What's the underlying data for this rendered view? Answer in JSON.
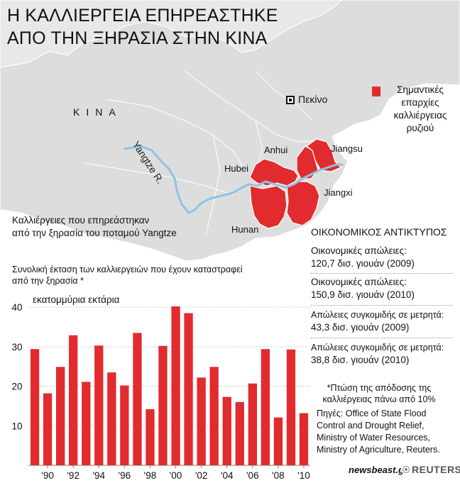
{
  "title": {
    "line1": "Η ΚΑΛΛΙΕΡΓΕΙΑ ΕΠΗΡΕΑΣΤΗΚΕ",
    "line2": "ΑΠΟ ΤΗΝ ΞΗΡΑΣΙΑ ΣΤΗΝ ΚΙΝΑ"
  },
  "map": {
    "country": "ΚΙΝΑ",
    "capital": "Πεκίνο",
    "river": "Yangtze R.",
    "provinces": [
      "Anhui",
      "Jiangsu",
      "Hubei",
      "Jiangxi",
      "Hunan"
    ],
    "legend": "Σημαντικές επαρχίες καλλιέργειας ρυζιού",
    "colors": {
      "land": "#ddddde",
      "highlight": "#e12b2e",
      "river": "#8fc3e3",
      "border": "#ffffff"
    }
  },
  "subtitle": {
    "line1": "Καλλιέργειες που επηρεάστηκαν",
    "line2": "από την ξηρασία του ποταμού Yangtze"
  },
  "chart_header": {
    "line1": "Συνολική έκταση των καλλιεργειών που έχουν καταστραφεί",
    "line2": "από την ξηρασία *"
  },
  "impact": {
    "title": "ΟΙΚΟΝΟΜΙΚΟΣ ΑΝΤΙΚΤΥΠΟΣ",
    "items": [
      {
        "label": "Οικονομικές απώλειες:",
        "value": "120,7 δισ. γιουάν (2009)"
      },
      {
        "label": "Οικονομικές απώλειες:",
        "value": "150,9 δισ. γιουάν (2010)"
      },
      {
        "label": "Απώλειες συγκομιδής σε μετρητά:",
        "value": "43,3 δισ. γιουάν (2009)"
      },
      {
        "label": "Απώλειες συγκομιδής σε μετρητά:",
        "value": "38,8 δισ. γιουάν (2010)"
      }
    ]
  },
  "note": "*Πτώση της απόδοσης της καλλιέργειας πάνω από 10%",
  "sources": [
    "Πηγές: Office of State Flood",
    "Control and Drought Relief,",
    "Ministry of Water Resources,",
    "Ministry of Agriculture, Reuters."
  ],
  "logos": {
    "left": "newsbeast.gr",
    "right": "REUTERS"
  },
  "chart_data": {
    "type": "bar",
    "unit_label": "εκατομμύρια εκτάρια",
    "x": [
      1989,
      1990,
      1991,
      1992,
      1993,
      1994,
      1995,
      1996,
      1997,
      1998,
      1999,
      2000,
      2001,
      2002,
      2003,
      2004,
      2005,
      2006,
      2007,
      2008,
      2009,
      2010
    ],
    "values": [
      29.4,
      18.2,
      24.9,
      32.9,
      21.1,
      30.3,
      23.5,
      20.2,
      33.5,
      14.2,
      30.2,
      40.2,
      38.5,
      22.2,
      24.9,
      17.3,
      16.0,
      20.7,
      29.4,
      12.1,
      29.3,
      13.2
    ],
    "tick_labels": [
      "'90",
      "'92",
      "'94",
      "'96",
      "'98",
      "'00",
      "'02",
      "'04",
      "'06",
      "'08",
      "'10"
    ],
    "y_ticks": [
      10,
      20,
      30,
      40
    ],
    "ylim": [
      0,
      42
    ],
    "grid": true,
    "bar_color": "#e12b2e"
  }
}
